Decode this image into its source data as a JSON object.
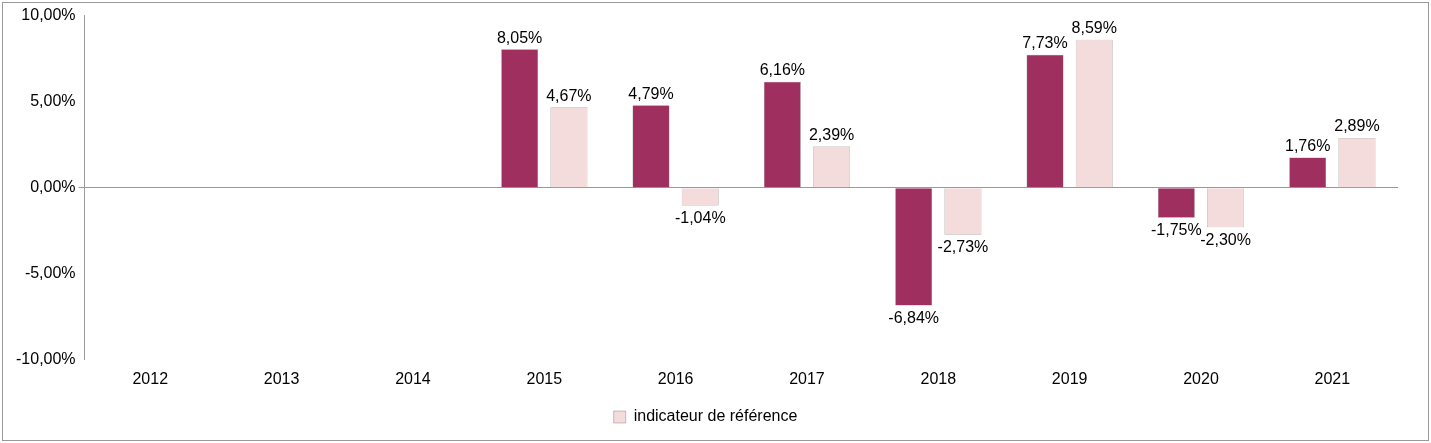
{
  "chart_data": {
    "type": "bar",
    "categories": [
      "2012",
      "2013",
      "2014",
      "2015",
      "2016",
      "2017",
      "2018",
      "2019",
      "2020",
      "2021"
    ],
    "series": [
      {
        "color": "#9e2f5e",
        "values": [
          null,
          null,
          null,
          8.05,
          4.79,
          6.16,
          -6.84,
          7.73,
          -1.75,
          1.76
        ],
        "value_labels": [
          null,
          null,
          null,
          "8,05%",
          "4,79%",
          "6,16%",
          "-6,84%",
          "7,73%",
          "-1,75%",
          "1,76%"
        ]
      },
      {
        "name": "indicateur de référence",
        "color": "#f5dcdc",
        "values": [
          null,
          null,
          null,
          4.67,
          -1.04,
          2.39,
          -2.73,
          8.59,
          -2.3,
          2.89
        ],
        "value_labels": [
          null,
          null,
          null,
          "4,67%",
          "-1,04%",
          "2,39%",
          "-2,73%",
          "8,59%",
          "-2,30%",
          "2,89%"
        ]
      }
    ],
    "ylim": [
      -10,
      10
    ],
    "yticks": [
      {
        "value": -10,
        "label": "-10,00%"
      },
      {
        "value": -5,
        "label": "-5,00%"
      },
      {
        "value": 0,
        "label": "0,00%"
      },
      {
        "value": 5,
        "label": "5,00%"
      },
      {
        "value": 10,
        "label": "10,00%"
      }
    ],
    "legend": "bottom"
  }
}
